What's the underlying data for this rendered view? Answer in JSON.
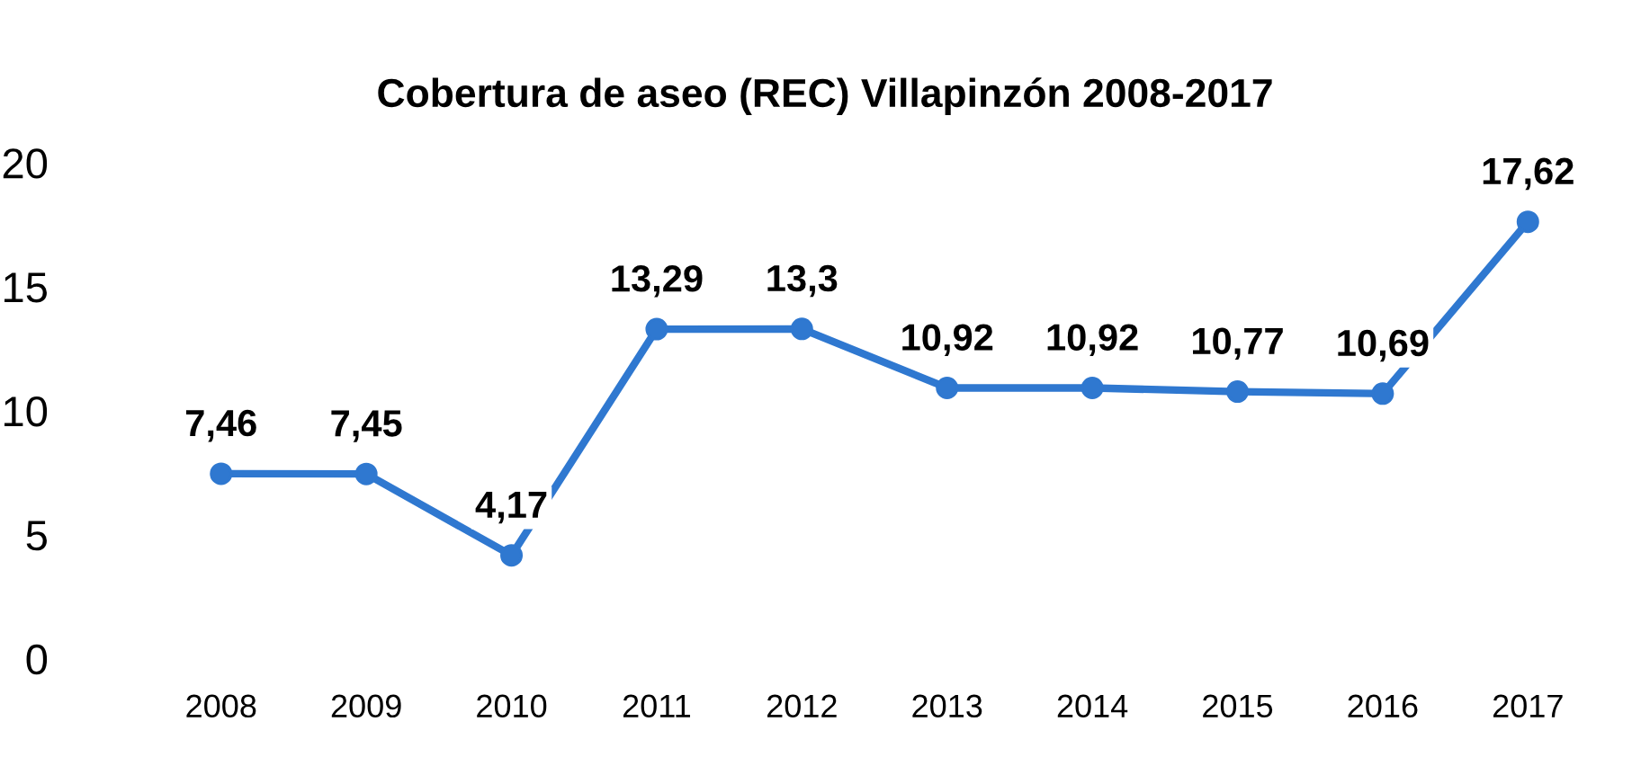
{
  "chart_data": {
    "type": "line",
    "title": "Cobertura de aseo (REC) Villapinzón 2008-2017",
    "categories": [
      "2008",
      "2009",
      "2010",
      "2011",
      "2012",
      "2013",
      "2014",
      "2015",
      "2016",
      "2017"
    ],
    "series": [
      {
        "color": "#2f78d0",
        "values": [
          7.46,
          7.45,
          4.17,
          13.29,
          13.3,
          10.92,
          10.92,
          10.77,
          10.69,
          17.62
        ],
        "value_labels": [
          "7,46",
          "7,45",
          "4,17",
          "13,29",
          "13,3",
          "10,92",
          "10,92",
          "10,77",
          "10,69",
          "17,62"
        ]
      }
    ],
    "ylim": [
      0,
      20
    ],
    "yticks": [
      0,
      5,
      10,
      15,
      20
    ],
    "grid": false,
    "legend": false,
    "marker": "circle",
    "line_style": "solid"
  }
}
